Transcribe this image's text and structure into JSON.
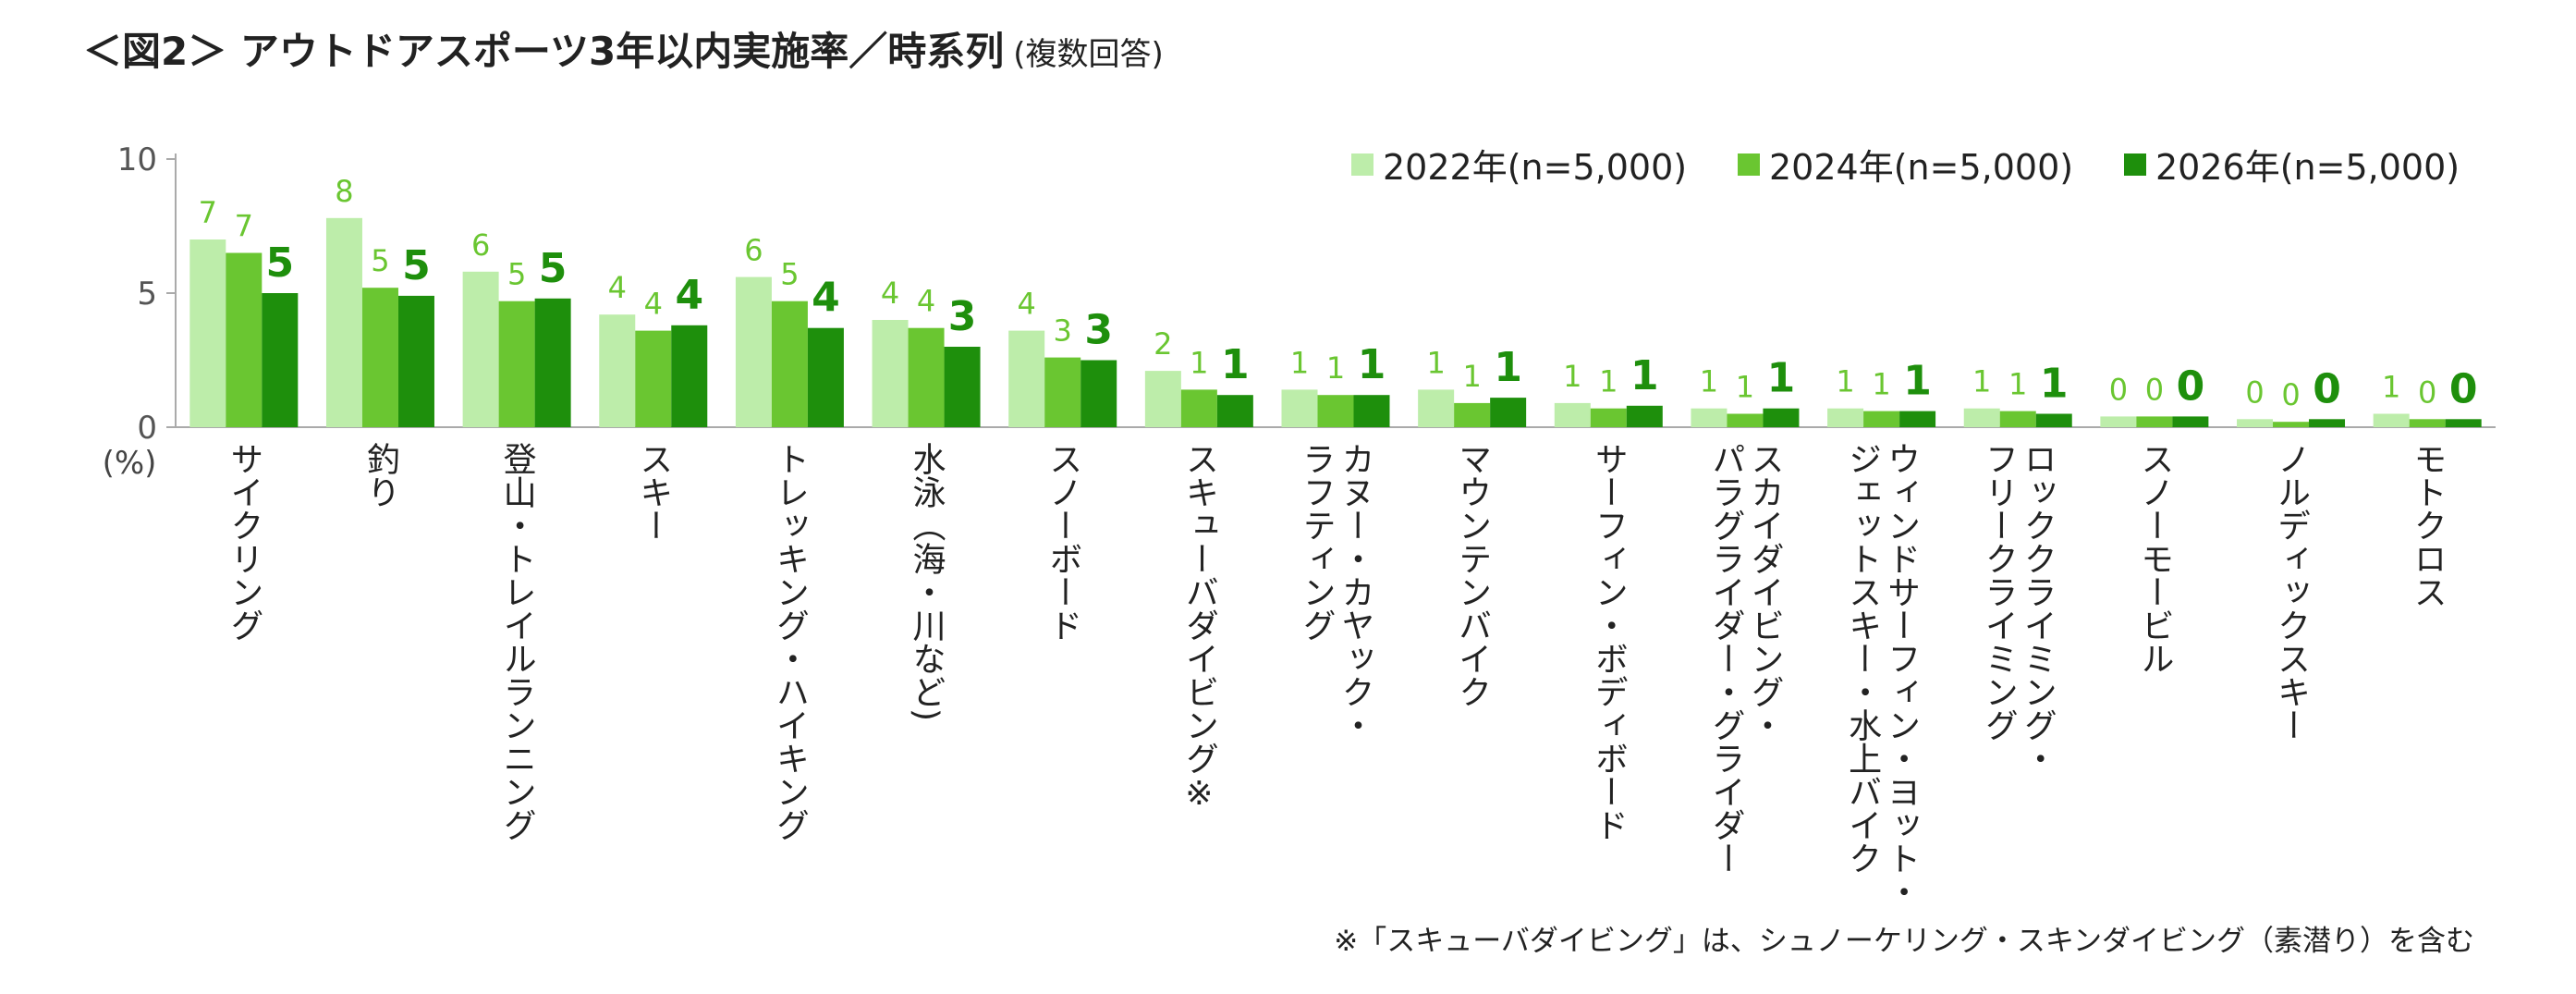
{
  "title": {
    "main": "＜図2＞ アウトドアスポーツ3年以内実施率／時系列",
    "sub": "(複数回答)"
  },
  "footnote": "※「スキューバダイビング」は、シュノーケリング・スキンダイビング（素潜り）を含む",
  "colors": {
    "s2022": "#bdedaa",
    "s2024": "#6ac631",
    "s2026": "#1e8f0c",
    "axis": "#aaaaaa",
    "label2026": "#1e8f0c",
    "label": "#6ac631"
  },
  "chart_data": {
    "type": "bar",
    "unit_label": "(%)",
    "ylim": [
      0,
      10
    ],
    "yticks": [
      "0",
      "5",
      "10"
    ],
    "categories": [
      "サイクリング",
      "釣り",
      "登山・トレイルランニング",
      "スキー",
      "トレッキング・ハイキング",
      "水泳（海・川など)",
      "スノーボード",
      "スキューバダイビング※",
      "カヌー・カヤック・\nラフティング",
      "マウンテンバイク",
      "サーフィン・ボディボード",
      "スカイダイビング・\nパラグライダー・グライダー",
      "ウィンドサーフィン・ヨット・\nジェットスキー・水上バイク",
      "ロッククライミング・\nフリークライミング",
      "スノーモービル",
      "ノルディックスキー",
      "モトクロス"
    ],
    "series": [
      {
        "name": "2022年(n=5,000)",
        "values": [
          7.0,
          7.8,
          5.8,
          4.2,
          5.6,
          4.0,
          3.6,
          2.1,
          1.4,
          1.4,
          0.9,
          0.7,
          0.7,
          0.7,
          0.4,
          0.3,
          0.5
        ],
        "labels": [
          "7",
          "8",
          "6",
          "4",
          "6",
          "4",
          "4",
          "2",
          "1",
          "1",
          "1",
          "1",
          "1",
          "1",
          "0",
          "0",
          "1"
        ]
      },
      {
        "name": "2024年(n=5,000)",
        "values": [
          6.5,
          5.2,
          4.7,
          3.6,
          4.7,
          3.7,
          2.6,
          1.4,
          1.2,
          0.9,
          0.7,
          0.5,
          0.6,
          0.6,
          0.4,
          0.2,
          0.3
        ],
        "labels": [
          "7",
          "5",
          "5",
          "4",
          "5",
          "4",
          "3",
          "1",
          "1",
          "1",
          "1",
          "1",
          "1",
          "1",
          "0",
          "0",
          "0"
        ]
      },
      {
        "name": "2026年(n=5,000)",
        "values": [
          5.0,
          4.9,
          4.8,
          3.8,
          3.7,
          3.0,
          2.5,
          1.2,
          1.2,
          1.1,
          0.8,
          0.7,
          0.6,
          0.5,
          0.4,
          0.3,
          0.3
        ],
        "labels": [
          "5",
          "5",
          "5",
          "4",
          "4",
          "3",
          "3",
          "1",
          "1",
          "1",
          "1",
          "1",
          "1",
          "1",
          "0",
          "0",
          "0"
        ]
      }
    ],
    "legend_position": "top-right",
    "grid": false
  }
}
